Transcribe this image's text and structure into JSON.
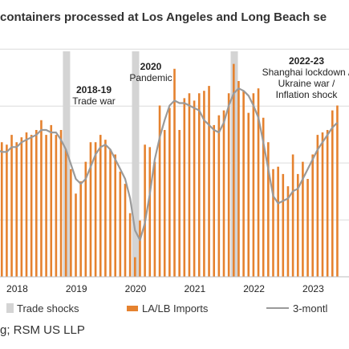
{
  "title": "containers processed at Los Angeles and Long Beach se",
  "source": "g; RSM US LLP",
  "legend": {
    "shocks": "Trade shocks",
    "imports": "LA/LB Imports",
    "average": "3-montl"
  },
  "colors": {
    "bar": "#e5822f",
    "line": "#9a9a9a",
    "shock": "#d4d4d4",
    "grid": "#dcdcdc"
  },
  "chart_data": {
    "type": "bar",
    "x_tick_labels": [
      "2018",
      "2019",
      "2020",
      "2021",
      "2022",
      "2023"
    ],
    "ylim": [
      0,
      1
    ],
    "value_scale": "fraction of plot height (no y-axis values printed)",
    "series": [
      {
        "name": "LA/LB Imports",
        "type": "bar",
        "values": [
          0.55,
          0.5,
          0.48,
          0.55,
          0.54,
          0.58,
          0.55,
          0.57,
          0.59,
          0.58,
          0.6,
          0.64,
          0.58,
          0.62,
          0.58,
          0.6,
          0.52,
          0.44,
          0.34,
          0.39,
          0.47,
          0.55,
          0.55,
          0.58,
          0.56,
          0.52,
          0.5,
          0.43,
          0.38,
          0.26,
          0.08,
          0.23,
          0.54,
          0.53,
          0.47,
          0.7,
          0.6,
          0.69,
          0.85,
          0.6,
          0.73,
          0.75,
          0.72,
          0.75,
          0.76,
          0.78,
          0.62,
          0.66,
          0.68,
          0.75,
          0.87,
          0.8,
          0.76,
          0.67,
          0.75,
          0.77,
          0.65,
          0.55,
          0.44,
          0.45,
          0.42,
          0.37,
          0.5,
          0.42,
          0.47,
          0.4,
          0.5,
          0.58,
          0.59,
          0.6,
          0.68,
          0.7
        ]
      },
      {
        "name": "3-montl",
        "type": "line",
        "values": [
          0.56,
          0.55,
          0.52,
          0.51,
          0.51,
          0.53,
          0.53,
          0.55,
          0.56,
          0.57,
          0.58,
          0.6,
          0.6,
          0.59,
          0.59,
          0.56,
          0.52,
          0.46,
          0.4,
          0.38,
          0.4,
          0.45,
          0.5,
          0.53,
          0.54,
          0.52,
          0.48,
          0.44,
          0.4,
          0.32,
          0.19,
          0.15,
          0.22,
          0.34,
          0.48,
          0.57,
          0.64,
          0.7,
          0.72,
          0.71,
          0.71,
          0.7,
          0.69,
          0.68,
          0.64,
          0.62,
          0.6,
          0.59,
          0.63,
          0.7,
          0.75,
          0.77,
          0.76,
          0.74,
          0.7,
          0.65,
          0.55,
          0.44,
          0.33,
          0.3,
          0.31,
          0.32,
          0.35,
          0.36,
          0.4,
          0.44,
          0.48,
          0.52,
          0.55,
          0.58,
          0.61,
          0.63
        ]
      }
    ],
    "shock_periods": [
      {
        "name": "Trade shocks",
        "label": "2018-19",
        "sublabel": "Trade war",
        "start_index": 16
      },
      {
        "name": "Trade shocks",
        "label": "2020",
        "sublabel": "Pandemic",
        "start_index": 30
      },
      {
        "name": "Trade shocks",
        "label": "2022-23",
        "sublabel": "Shanghai lockdown / Ukraine war / Inflation shock",
        "sublabel_lines": [
          "Shanghai lockdown /",
          "Ukraine war /",
          "Inflation shock"
        ],
        "start_index": 50
      }
    ],
    "grid": true,
    "legend_position": "bottom"
  }
}
